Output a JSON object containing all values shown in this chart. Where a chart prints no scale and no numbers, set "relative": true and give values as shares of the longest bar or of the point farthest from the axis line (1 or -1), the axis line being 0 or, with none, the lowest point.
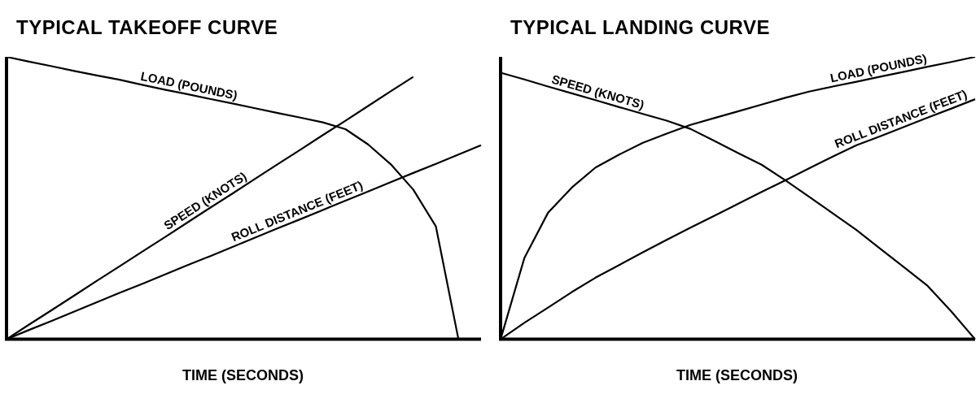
{
  "chart_data": [
    {
      "type": "line",
      "title": "TYPICAL TAKEOFF CURVE",
      "xlabel": "TIME (SECONDS)",
      "relative": true,
      "legend": false,
      "marker": "none",
      "line_style": "solid",
      "categories": [
        null,
        null,
        null,
        null,
        null,
        null,
        null,
        null,
        null,
        null,
        null,
        null,
        null,
        null,
        null,
        null,
        null,
        null,
        null,
        null,
        null,
        null
      ],
      "series": [
        {
          "name": "LOAD (POUNDS)",
          "color": "#000000",
          "values": [
            1,
            0.983,
            0.967,
            0.95,
            0.934,
            0.919,
            0.901,
            0.884,
            0.868,
            0.851,
            0.835,
            0.818,
            0.801,
            0.785,
            0.768,
            0.744,
            0.69,
            0.62,
            0.53,
            0.4,
            0,
            null
          ]
        },
        {
          "name": "SPEED (KNOTS)",
          "color": "#000000",
          "values": [
            0,
            0.052,
            0.103,
            0.155,
            0.207,
            0.258,
            0.31,
            0.361,
            0.413,
            0.465,
            0.516,
            0.568,
            0.62,
            0.671,
            0.723,
            0.774,
            0.826,
            0.878,
            0.929,
            null,
            null,
            null
          ]
        },
        {
          "name": "ROLL DISTANCE (FEET)",
          "color": "#000000",
          "values": [
            0,
            0.033,
            0.065,
            0.098,
            0.131,
            0.164,
            0.196,
            0.229,
            0.262,
            0.294,
            0.327,
            0.36,
            0.393,
            0.425,
            0.458,
            0.491,
            0.523,
            0.556,
            0.589,
            0.621,
            0.654,
            0.687
          ]
        }
      ]
    },
    {
      "type": "line",
      "title": "TYPICAL LANDING CURVE",
      "xlabel": "TIME (SECONDS)",
      "relative": true,
      "legend": false,
      "marker": "none",
      "line_style": "solid",
      "categories": [
        null,
        null,
        null,
        null,
        null,
        null,
        null,
        null,
        null,
        null,
        null,
        null,
        null,
        null,
        null,
        null,
        null,
        null,
        null,
        null,
        null
      ],
      "series": [
        {
          "name": "SPEED (KNOTS)",
          "color": "#000000",
          "values": [
            0.944,
            0.92,
            0.895,
            0.871,
            0.847,
            0.822,
            0.798,
            0.774,
            0.745,
            0.703,
            0.66,
            0.618,
            0.563,
            0.505,
            0.446,
            0.387,
            0.321,
            0.255,
            0.189,
            0.098,
            0
          ]
        },
        {
          "name": "LOAD (POUNDS)",
          "color": "#000000",
          "values": [
            0,
            0.287,
            0.448,
            0.537,
            0.608,
            0.654,
            0.696,
            0.728,
            0.759,
            0.783,
            0.807,
            0.831,
            0.855,
            0.877,
            0.895,
            0.912,
            0.93,
            0.947,
            0.965,
            0.982,
            1
          ]
        },
        {
          "name": "ROLL DISTANCE (FEET)",
          "color": "#000000",
          "values": [
            0,
            0.058,
            0.112,
            0.167,
            0.218,
            0.263,
            0.308,
            0.352,
            0.395,
            0.437,
            0.479,
            0.522,
            0.563,
            0.605,
            0.647,
            0.687,
            0.719,
            0.752,
            0.785,
            0.817,
            0.85
          ]
        }
      ]
    }
  ]
}
